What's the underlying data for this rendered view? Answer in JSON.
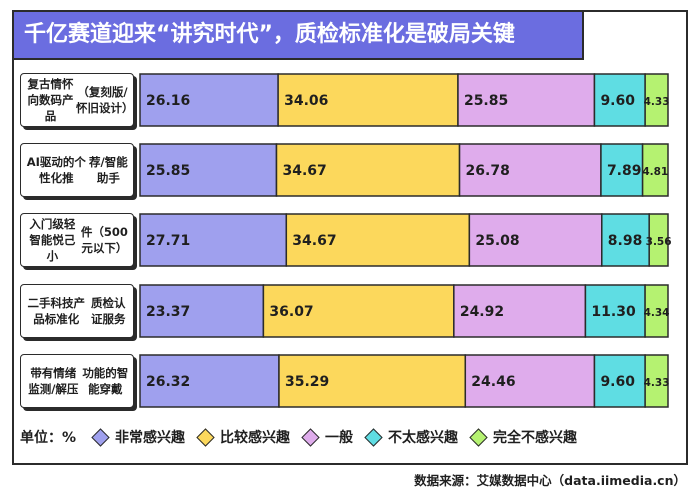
{
  "title": "千亿赛道迎来“讲究时代”，质检标准化是破局关键",
  "unit_label": "单位：%",
  "source": "数据来源：艾媒数据中心（data.iimedia.cn）",
  "colors": {
    "title_bg": "#6b6de0",
    "series": [
      "#9fa0ee",
      "#fcd85c",
      "#dfacec",
      "#5fdde3",
      "#b5f271"
    ]
  },
  "chart_data": {
    "type": "bar",
    "orientation": "horizontal-stacked",
    "categories": [
      "复古情怀向数码产品（复刻版/怀旧设计）",
      "AI驱动的个性化推荐/智能助手",
      "入门级轻智能悦己小件（500元以下）",
      "二手科技产品标准化质检认证服务",
      "带有情绪监测/解压功能的智能穿戴"
    ],
    "category_lines": [
      [
        "复古情怀向数码产品",
        "（复刻版/怀旧设计）"
      ],
      [
        "AI驱动的个性化推",
        "荐/智能助手"
      ],
      [
        "入门级轻智能悦己小",
        "件（500元以下）"
      ],
      [
        "二手科技产品标准化",
        "质检认证服务"
      ],
      [
        "带有情绪监测/解压",
        "功能的智能穿戴"
      ]
    ],
    "series": [
      {
        "name": "非常感兴趣",
        "values": [
          26.16,
          25.85,
          27.71,
          23.37,
          26.32
        ]
      },
      {
        "name": "比较感兴趣",
        "values": [
          34.06,
          34.67,
          34.67,
          36.07,
          35.29
        ]
      },
      {
        "name": "一般",
        "values": [
          25.85,
          26.78,
          25.08,
          24.92,
          24.46
        ]
      },
      {
        "name": "不太感兴趣",
        "values": [
          9.6,
          7.89,
          8.98,
          11.3,
          9.6
        ]
      },
      {
        "name": "完全不感兴趣",
        "values": [
          4.33,
          4.81,
          3.56,
          4.34,
          4.33
        ]
      }
    ],
    "value_labels": [
      [
        "26.16",
        "34.06",
        "25.85",
        "9.60",
        "4.33"
      ],
      [
        "25.85",
        "34.67",
        "26.78",
        "7.89",
        "4.81"
      ],
      [
        "27.71",
        "34.67",
        "25.08",
        "8.98",
        "3.56"
      ],
      [
        "23.37",
        "36.07",
        "24.92",
        "11.30",
        "4.34"
      ],
      [
        "26.32",
        "35.29",
        "24.46",
        "9.60",
        "4.33"
      ]
    ],
    "xlim": [
      0,
      100
    ],
    "legend_position": "bottom"
  }
}
